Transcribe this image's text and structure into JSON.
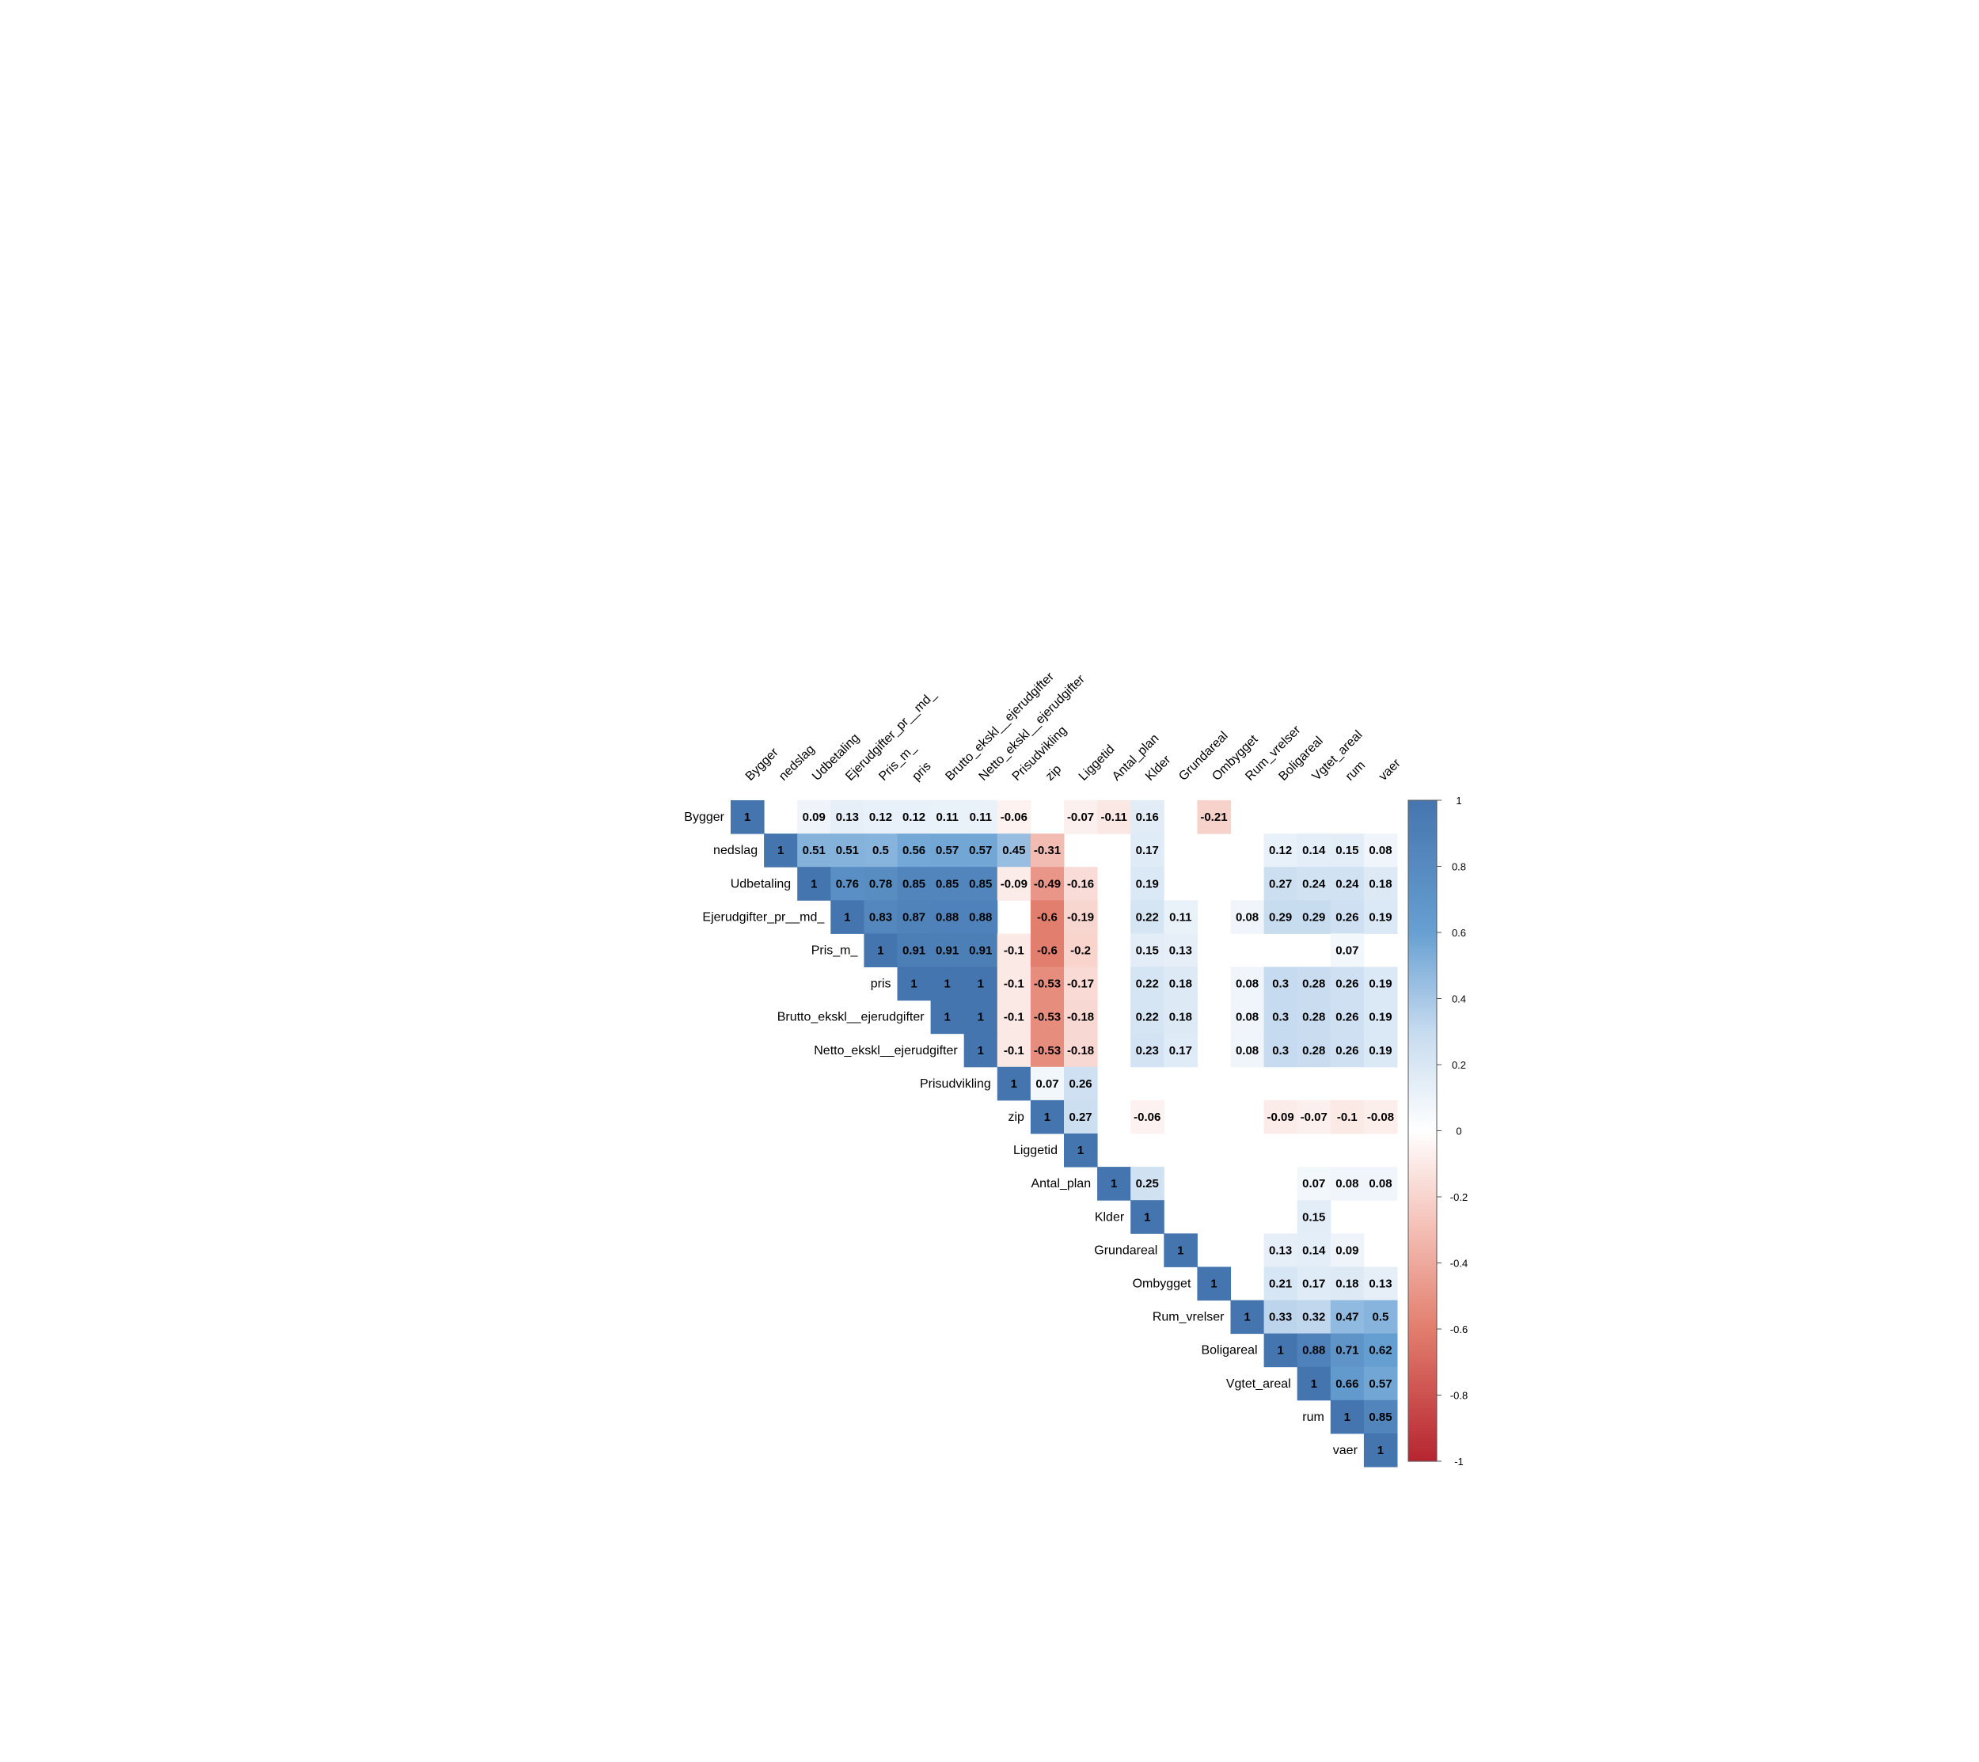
{
  "chart_data": {
    "type": "heatmap",
    "title": "",
    "xlabel": "",
    "ylabel": "",
    "variables": [
      "Bygger",
      "nedslag",
      "Udbetaling",
      "Ejerudgifter_pr__md_",
      "Pris_m_",
      "pris",
      "Brutto_ekskl__ejerudgifter",
      "Netto_ekskl__ejerudgifter",
      "Prisudvikling",
      "zip",
      "Liggetid",
      "Antal_plan",
      "Klder",
      "Grundareal",
      "Ombygget",
      "Rum_vrelser",
      "Boligareal",
      "Vgtet_areal",
      "rum",
      "vaer"
    ],
    "layout": "upper-triangle",
    "blank_rule": "insignificant correlations left blank",
    "cells": [
      [
        0,
        0,
        1
      ],
      [
        0,
        2,
        0.09
      ],
      [
        0,
        3,
        0.13
      ],
      [
        0,
        4,
        0.12
      ],
      [
        0,
        5,
        0.12
      ],
      [
        0,
        6,
        0.11
      ],
      [
        0,
        7,
        0.11
      ],
      [
        0,
        8,
        -0.06
      ],
      [
        0,
        10,
        -0.07
      ],
      [
        0,
        11,
        -0.11
      ],
      [
        0,
        12,
        0.16
      ],
      [
        0,
        14,
        -0.21
      ],
      [
        1,
        1,
        1
      ],
      [
        1,
        2,
        0.51
      ],
      [
        1,
        3,
        0.51
      ],
      [
        1,
        4,
        0.5
      ],
      [
        1,
        5,
        0.56
      ],
      [
        1,
        6,
        0.57
      ],
      [
        1,
        7,
        0.57
      ],
      [
        1,
        8,
        0.45
      ],
      [
        1,
        9,
        -0.31
      ],
      [
        1,
        12,
        0.17
      ],
      [
        1,
        16,
        0.12
      ],
      [
        1,
        17,
        0.14
      ],
      [
        1,
        18,
        0.15
      ],
      [
        1,
        19,
        0.08
      ],
      [
        2,
        2,
        1
      ],
      [
        2,
        3,
        0.76
      ],
      [
        2,
        4,
        0.78
      ],
      [
        2,
        5,
        0.85
      ],
      [
        2,
        6,
        0.85
      ],
      [
        2,
        7,
        0.85
      ],
      [
        2,
        8,
        -0.09
      ],
      [
        2,
        9,
        -0.49
      ],
      [
        2,
        10,
        -0.16
      ],
      [
        2,
        12,
        0.19
      ],
      [
        2,
        16,
        0.27
      ],
      [
        2,
        17,
        0.24
      ],
      [
        2,
        18,
        0.24
      ],
      [
        2,
        19,
        0.18
      ],
      [
        3,
        3,
        1
      ],
      [
        3,
        4,
        0.83
      ],
      [
        3,
        5,
        0.87
      ],
      [
        3,
        6,
        0.88
      ],
      [
        3,
        7,
        0.88
      ],
      [
        3,
        9,
        -0.6
      ],
      [
        3,
        10,
        -0.19
      ],
      [
        3,
        12,
        0.22
      ],
      [
        3,
        13,
        0.11
      ],
      [
        3,
        15,
        0.08
      ],
      [
        3,
        16,
        0.29
      ],
      [
        3,
        17,
        0.29
      ],
      [
        3,
        18,
        0.26
      ],
      [
        3,
        19,
        0.19
      ],
      [
        4,
        4,
        1
      ],
      [
        4,
        5,
        0.91
      ],
      [
        4,
        6,
        0.91
      ],
      [
        4,
        7,
        0.91
      ],
      [
        4,
        8,
        -0.1
      ],
      [
        4,
        9,
        -0.6
      ],
      [
        4,
        10,
        -0.2
      ],
      [
        4,
        12,
        0.15
      ],
      [
        4,
        13,
        0.13
      ],
      [
        4,
        18,
        0.07
      ],
      [
        5,
        5,
        1
      ],
      [
        5,
        6,
        1
      ],
      [
        5,
        7,
        1
      ],
      [
        5,
        8,
        -0.1
      ],
      [
        5,
        9,
        -0.53
      ],
      [
        5,
        10,
        -0.17
      ],
      [
        5,
        12,
        0.22
      ],
      [
        5,
        13,
        0.18
      ],
      [
        5,
        15,
        0.08
      ],
      [
        5,
        16,
        0.3
      ],
      [
        5,
        17,
        0.28
      ],
      [
        5,
        18,
        0.26
      ],
      [
        5,
        19,
        0.19
      ],
      [
        6,
        6,
        1
      ],
      [
        6,
        7,
        1
      ],
      [
        6,
        8,
        -0.1
      ],
      [
        6,
        9,
        -0.53
      ],
      [
        6,
        10,
        -0.18
      ],
      [
        6,
        12,
        0.22
      ],
      [
        6,
        13,
        0.18
      ],
      [
        6,
        15,
        0.08
      ],
      [
        6,
        16,
        0.3
      ],
      [
        6,
        17,
        0.28
      ],
      [
        6,
        18,
        0.26
      ],
      [
        6,
        19,
        0.19
      ],
      [
        7,
        7,
        1
      ],
      [
        7,
        8,
        -0.1
      ],
      [
        7,
        9,
        -0.53
      ],
      [
        7,
        10,
        -0.18
      ],
      [
        7,
        12,
        0.23
      ],
      [
        7,
        13,
        0.17
      ],
      [
        7,
        15,
        0.08
      ],
      [
        7,
        16,
        0.3
      ],
      [
        7,
        17,
        0.28
      ],
      [
        7,
        18,
        0.26
      ],
      [
        7,
        19,
        0.19
      ],
      [
        8,
        8,
        1
      ],
      [
        8,
        9,
        0.07
      ],
      [
        8,
        10,
        0.26
      ],
      [
        9,
        9,
        1
      ],
      [
        9,
        10,
        0.27
      ],
      [
        9,
        12,
        -0.06
      ],
      [
        9,
        16,
        -0.09
      ],
      [
        9,
        17,
        -0.07
      ],
      [
        9,
        18,
        -0.1
      ],
      [
        9,
        19,
        -0.08
      ],
      [
        10,
        10,
        1
      ],
      [
        11,
        11,
        1
      ],
      [
        11,
        12,
        0.25
      ],
      [
        11,
        17,
        0.07
      ],
      [
        11,
        18,
        0.08
      ],
      [
        11,
        19,
        0.08
      ],
      [
        12,
        12,
        1
      ],
      [
        12,
        17,
        0.15
      ],
      [
        13,
        13,
        1
      ],
      [
        13,
        16,
        0.13
      ],
      [
        13,
        17,
        0.14
      ],
      [
        13,
        18,
        0.09
      ],
      [
        14,
        14,
        1
      ],
      [
        14,
        16,
        0.21
      ],
      [
        14,
        17,
        0.17
      ],
      [
        14,
        18,
        0.18
      ],
      [
        14,
        19,
        0.13
      ],
      [
        15,
        15,
        1
      ],
      [
        15,
        16,
        0.33
      ],
      [
        15,
        17,
        0.32
      ],
      [
        15,
        18,
        0.47
      ],
      [
        15,
        19,
        0.5
      ],
      [
        16,
        16,
        1
      ],
      [
        16,
        17,
        0.88
      ],
      [
        16,
        18,
        0.71
      ],
      [
        16,
        19,
        0.62
      ],
      [
        17,
        17,
        1
      ],
      [
        17,
        18,
        0.66
      ],
      [
        17,
        19,
        0.57
      ],
      [
        18,
        18,
        1
      ],
      [
        18,
        19,
        0.85
      ],
      [
        19,
        19,
        1
      ]
    ],
    "colorbar": {
      "range": [
        -1,
        1
      ],
      "ticks": [
        "1",
        "0.8",
        "0.6",
        "0.4",
        "0.2",
        "0",
        "-0.2",
        "-0.4",
        "-0.6",
        "-0.8",
        "-1"
      ],
      "colors": {
        "negative": "#B2182B",
        "neutral": "#FFFFFF",
        "positive": "#2166AC",
        "strong_positive": "#4575AF",
        "strong_negative": "#C9474F"
      },
      "placement": "right"
    }
  }
}
